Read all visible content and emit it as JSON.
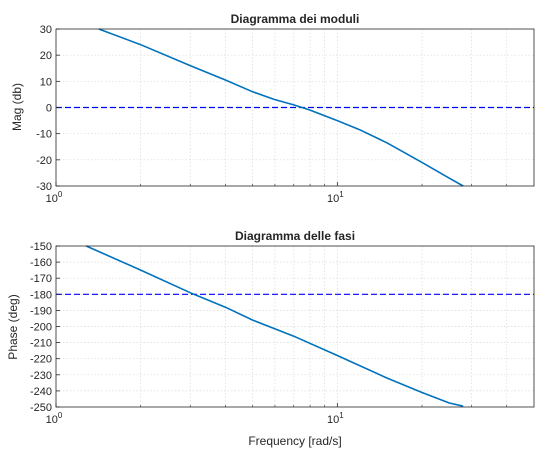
{
  "chart_data": [
    {
      "type": "line",
      "title": "Diagramma dei moduli",
      "xlabel": "",
      "ylabel": "Mag (db)",
      "xscale": "log",
      "xlim": [
        1,
        50
      ],
      "ylim": [
        -30,
        30
      ],
      "yticks": [
        "30",
        "20",
        "10",
        "0",
        "-10",
        "-20",
        "-30"
      ],
      "xticks": [
        {
          "base": "10",
          "exp": "0"
        },
        {
          "base": "10",
          "exp": "1"
        }
      ],
      "grid": true,
      "reference_line": {
        "y": 0,
        "style": "dashed",
        "color": "#0000ff"
      },
      "series": [
        {
          "color": "#0072bd",
          "x": [
            1.42,
            2,
            3,
            4,
            5,
            6,
            7,
            8,
            10,
            12,
            15,
            20,
            25,
            28
          ],
          "y": [
            30,
            24,
            16,
            10.5,
            6,
            3,
            1,
            -1,
            -5,
            -8.5,
            -13.5,
            -21,
            -27,
            -30
          ]
        }
      ]
    },
    {
      "type": "line",
      "title": "Diagramma delle fasi",
      "xlabel": "Frequency [rad/s]",
      "ylabel": "Phase (deg)",
      "xscale": "log",
      "xlim": [
        1,
        50
      ],
      "ylim": [
        -250,
        -150
      ],
      "yticks": [
        "-150",
        "-160",
        "-170",
        "-180",
        "-190",
        "-200",
        "-210",
        "-220",
        "-230",
        "-240",
        "-250"
      ],
      "xticks": [
        {
          "base": "10",
          "exp": "0"
        },
        {
          "base": "10",
          "exp": "1"
        }
      ],
      "grid": true,
      "reference_line": {
        "y": -180,
        "style": "dashed",
        "color": "#0000ff"
      },
      "series": [
        {
          "color": "#0072bd",
          "x": [
            1.28,
            2,
            3,
            4,
            5,
            7,
            10,
            15,
            20,
            25,
            28
          ],
          "y": [
            -150,
            -165,
            -179,
            -188,
            -196,
            -206,
            -218,
            -232,
            -241,
            -247.5,
            -249.5
          ]
        }
      ]
    }
  ]
}
